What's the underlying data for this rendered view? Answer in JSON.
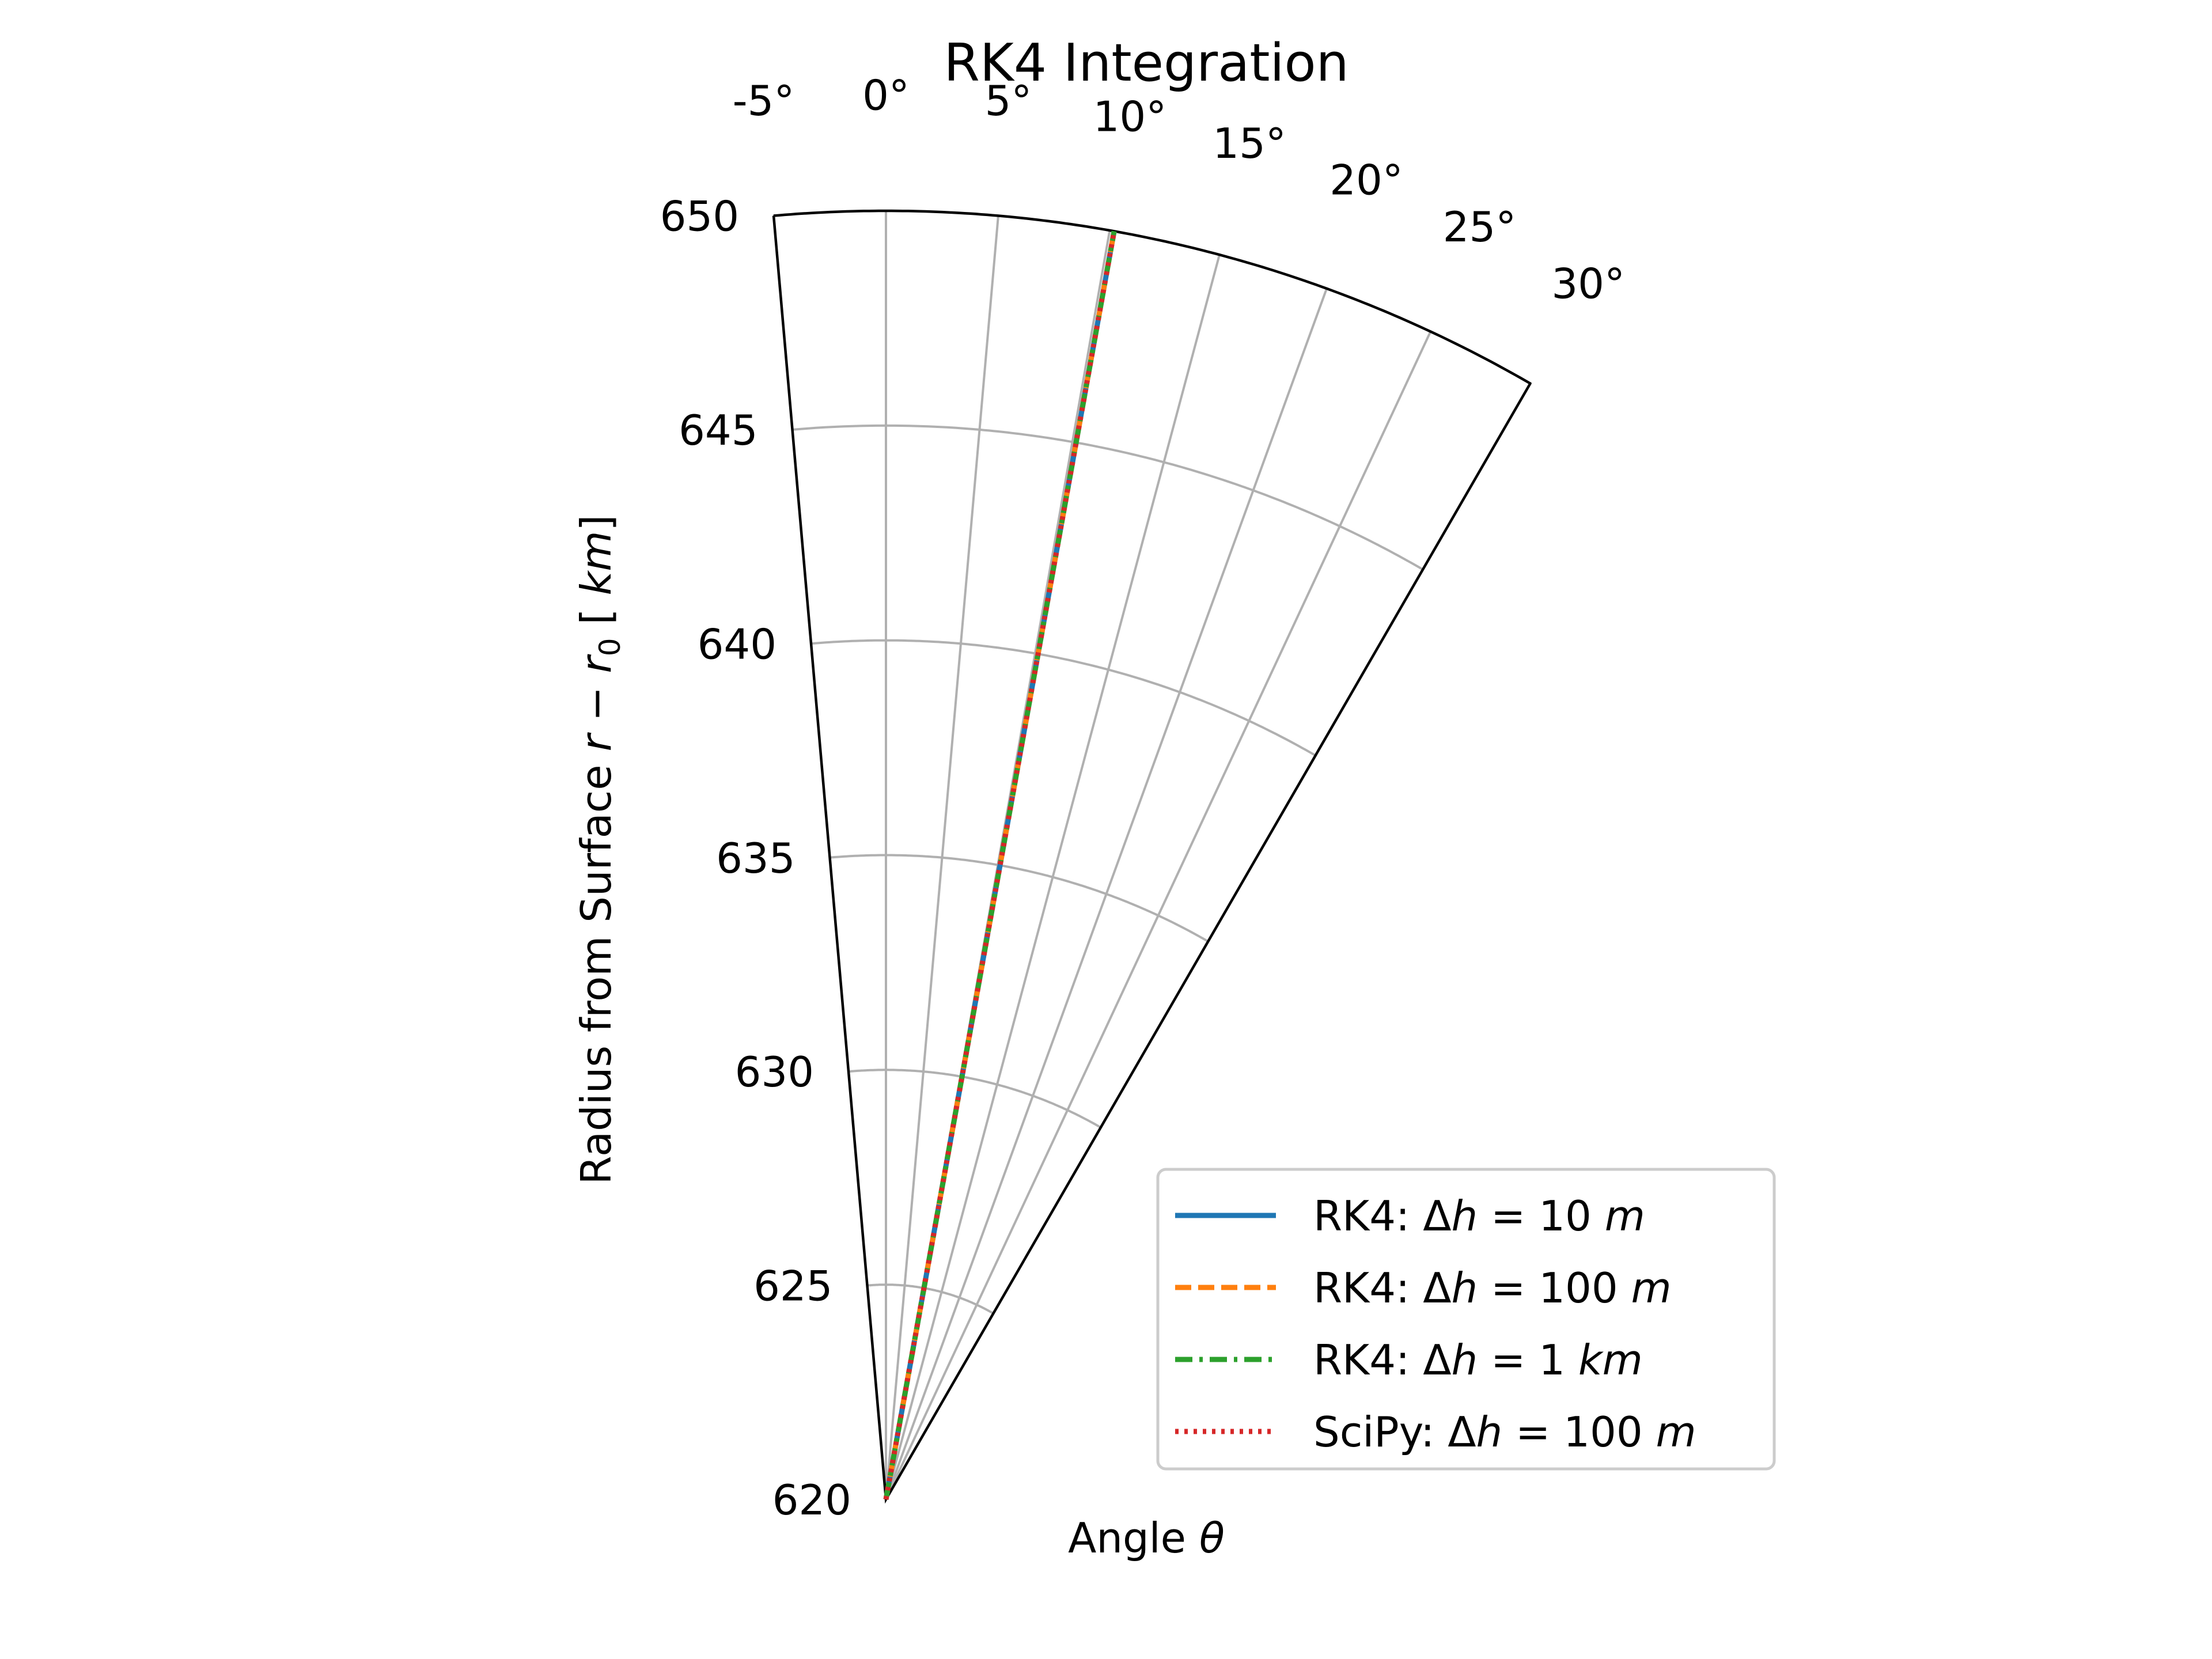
{
  "chart_data": {
    "type": "line",
    "projection": "polar",
    "title": "RK4 Integration",
    "xlabel": "Angle θ",
    "ylabel": {
      "prefix": "Radius from Surface ",
      "r": "r",
      "minus": " − ",
      "r0": "r",
      "r0_sub": "0",
      "units": "  [km]"
    },
    "theta_range_deg": [
      -5,
      30
    ],
    "r_range": [
      620,
      650
    ],
    "theta_ticks": [
      -5,
      0,
      5,
      10,
      15,
      20,
      25,
      30
    ],
    "theta_tick_labels": [
      "-5°",
      "0°",
      "5°",
      "10°",
      "15°",
      "20°",
      "25°",
      "30°"
    ],
    "r_ticks": [
      620,
      625,
      630,
      635,
      640,
      645,
      650
    ],
    "r_tick_labels": [
      "620",
      "625",
      "630",
      "635",
      "640",
      "645",
      "650"
    ],
    "grid": true,
    "legend_position": "lower-right",
    "series": [
      {
        "name": "RK4: Δh = 10 m",
        "legend": {
          "pre": "RK4: Δ",
          "var": "h",
          "mid": " = 10 ",
          "unit": "m"
        },
        "color": "#1f77b4",
        "style": "solid",
        "theta_deg": [
          0,
          10.2
        ],
        "r": [
          620,
          650
        ]
      },
      {
        "name": "RK4: Δh = 100 m",
        "legend": {
          "pre": "RK4: Δ",
          "var": "h",
          "mid": " = 100 ",
          "unit": "m"
        },
        "color": "#ff7f0e",
        "style": "dashed",
        "theta_deg": [
          0,
          10.2
        ],
        "r": [
          620,
          650
        ]
      },
      {
        "name": "RK4: Δh = 1 km",
        "legend": {
          "pre": "RK4: Δ",
          "var": "h",
          "mid": " = 1 ",
          "unit": "km"
        },
        "color": "#2ca02c",
        "style": "dashdot",
        "theta_deg": [
          0,
          10.2
        ],
        "r": [
          620,
          650
        ]
      },
      {
        "name": "SciPy: Δh = 100 m",
        "legend": {
          "pre": "SciPy: Δ",
          "var": "h",
          "mid": " = 100 ",
          "unit": "m"
        },
        "color": "#d62728",
        "style": "dotted",
        "theta_deg": [
          0,
          10.2
        ],
        "r": [
          620,
          650
        ]
      }
    ]
  }
}
